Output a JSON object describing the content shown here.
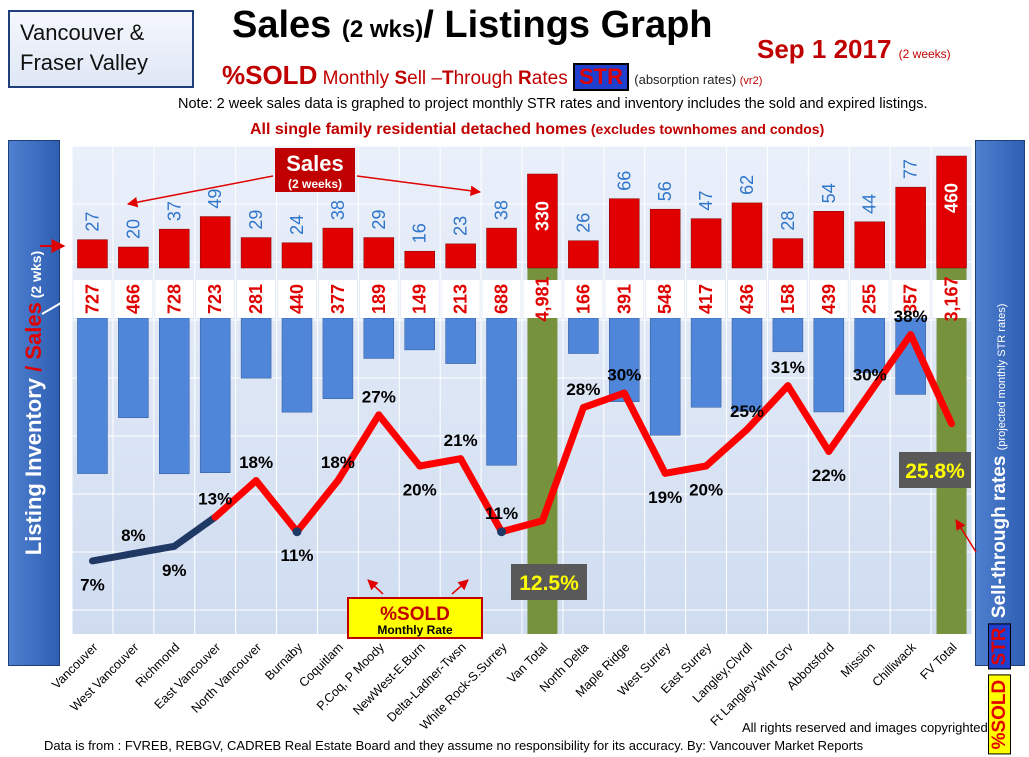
{
  "header": {
    "region_line1": "Vancouver &",
    "region_line2": "Fraser Valley",
    "title_main": "Sales ",
    "title_small": "(2 wks)",
    "title_rest": "/ Listings Graph",
    "date_main": "Sep 1 2017 ",
    "date_small": "(2 weeks)",
    "subtitle_pct": "%SOLD",
    "subtitle_words": [
      {
        "cap": "",
        "rest": " Monthly "
      },
      {
        "cap": "S",
        "rest": "ell –"
      },
      {
        "cap": "T",
        "rest": "hrough "
      },
      {
        "cap": "R",
        "rest": "ates "
      }
    ],
    "str_badge": "STR",
    "absorption": " (absorption rates) ",
    "version": "(vr2)",
    "note": "Note: 2 week sales data is graphed to project monthly STR rates and inventory includes the sold and expired listings.",
    "scope_bold": "All single family residential detached homes",
    "scope_paren": " (excludes townhomes and condos)"
  },
  "left_axis": {
    "part1": "Listing Inventory",
    "slash": " / ",
    "part2": "Sales",
    "part3": " (2 wks)"
  },
  "right_axis": {
    "pct_sold": "%SOLD",
    "str": "STR",
    "label": " Sell-through rates",
    "note": "(projected monthly STR rates)"
  },
  "annotations": {
    "sales_title": "Sales",
    "sales_sub": "(2 weeks)",
    "pct_box_title": "%SOLD",
    "pct_box_sub": "Monthly Rate",
    "van_total_str": "12.5%",
    "fv_total_str": "25.8%"
  },
  "footer": {
    "rights": "All rights reserved and  images copyrighted",
    "source": "Data is from : FVREB, REBGV, CADREB Real Estate Board and they assume  no responsibility for its accuracy.  By: Vancouver Market Reports"
  },
  "colors": {
    "sales_bar": "#e00000",
    "listing_bar": "#4f86d9",
    "total_bar": "#76923c",
    "str_line": "#ff0000",
    "str_line_low": "#1f3864",
    "total_label_bg": "#595959",
    "total_label_text": "#ffff00"
  },
  "chart_data": {
    "type": "bar",
    "categories": [
      "Vancouver",
      "West Vancouver",
      "Richmond",
      "East Vancouver",
      "North Vancouver",
      "Burnaby",
      "Coquitlam",
      "P.Coq, P Moody",
      "NewWest-E.Burn",
      "Delta-Ladner-Twsn",
      "White Rock-S.Surrey",
      "Van Total",
      "North Delta",
      "Maple Ridge",
      "West Surrey",
      "East Surrey",
      "Langley,Clvrdl",
      "Ft Langley-Wlnt Grv",
      "Abbotsford",
      "Mission",
      "Chilliwack",
      "FV Total"
    ],
    "series": [
      {
        "name": "Sales",
        "values": [
          27,
          20,
          37,
          49,
          29,
          24,
          38,
          29,
          16,
          23,
          38,
          330,
          26,
          66,
          56,
          47,
          62,
          28,
          54,
          44,
          77,
          460
        ]
      },
      {
        "name": "Listing Inventory",
        "values": [
          727,
          466,
          728,
          723,
          281,
          440,
          377,
          189,
          149,
          213,
          688,
          4981,
          166,
          391,
          548,
          417,
          436,
          158,
          439,
          255,
          357,
          3167
        ]
      },
      {
        "name": "%SOLD Monthly Rate",
        "values": [
          7,
          8,
          9,
          13,
          18,
          11,
          18,
          27,
          20,
          21,
          11,
          12.5,
          28,
          30,
          19,
          20,
          25,
          31,
          22,
          30,
          38,
          25.8
        ]
      }
    ],
    "sales_labels": [
      "27",
      "20",
      "37",
      "49",
      "29",
      "24",
      "38",
      "29",
      "16",
      "23",
      "38",
      "330",
      "26",
      "66",
      "56",
      "47",
      "62",
      "28",
      "54",
      "44",
      "77",
      "460"
    ],
    "inventory_labels": [
      "727",
      "466",
      "728",
      "723",
      "281",
      "440",
      "377",
      "189",
      "149",
      "213",
      "688",
      "4,981",
      "166",
      "391",
      "548",
      "417",
      "436",
      "158",
      "439",
      "255",
      "357",
      "3,167"
    ],
    "str_labels": [
      "7%",
      "8%",
      "9%",
      "13%",
      "18%",
      "11%",
      "18%",
      "27%",
      "20%",
      "21%",
      "11%",
      "",
      "28%",
      "30%",
      "19%",
      "20%",
      "25%",
      "31%",
      "22%",
      "30%",
      "38%",
      ""
    ],
    "total_indices": [
      11,
      21
    ],
    "grid": true
  }
}
